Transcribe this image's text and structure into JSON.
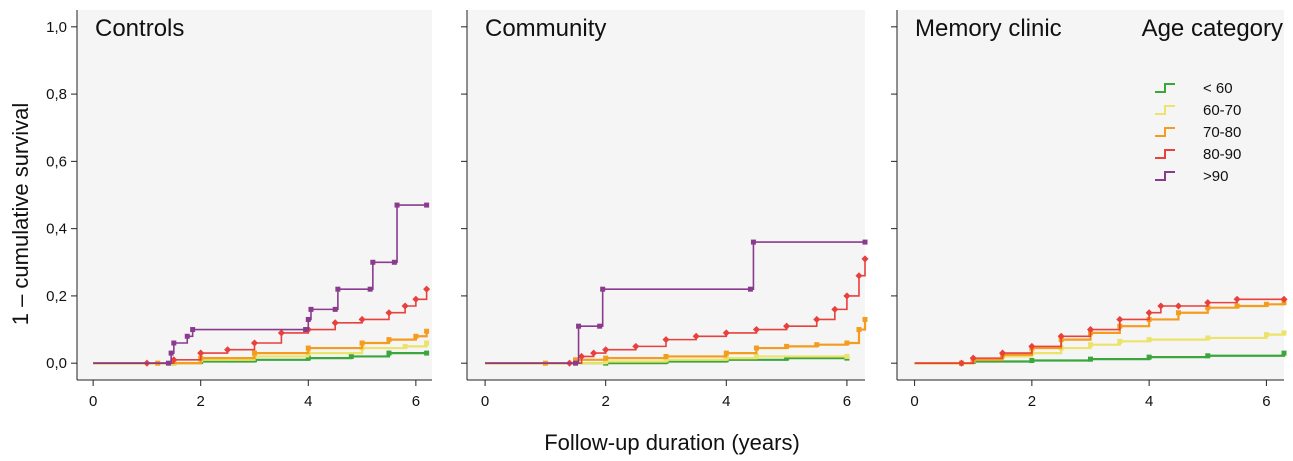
{
  "figure": {
    "ylabel": "1 – cumulative survival",
    "xlabel": "Follow-up duration (years)",
    "legend_title": "Age category"
  },
  "chart_data": {
    "type": "line",
    "step": true,
    "xlim": [
      -0.3,
      6.3
    ],
    "ylim": [
      -0.05,
      1.05
    ],
    "xticks": [
      "0",
      "2",
      "4",
      "6"
    ],
    "yticks": [
      "0,0",
      "0,2",
      "0,4",
      "0,6",
      "0,8",
      "1,0"
    ],
    "grid": false,
    "legend_position": "top-right",
    "legend": [
      {
        "label": "< 60",
        "color": "#3aa63c"
      },
      {
        "label": "60-70",
        "color": "#ece36a"
      },
      {
        "label": "70-80",
        "color": "#f39c1e"
      },
      {
        "label": "80-90",
        "color": "#e8403c"
      },
      {
        "label": ">90",
        "color": "#8a3b8e"
      }
    ],
    "panels": [
      {
        "title": "Controls",
        "show_ytick_labels": true,
        "series": [
          {
            "legend_index": 0,
            "points": [
              [
                0,
                0
              ],
              [
                1.5,
                0
              ],
              [
                2,
                0.005
              ],
              [
                3,
                0.01
              ],
              [
                4,
                0.015
              ],
              [
                4.8,
                0.02
              ],
              [
                5.5,
                0.03
              ],
              [
                6.2,
                0.03
              ]
            ]
          },
          {
            "legend_index": 1,
            "points": [
              [
                0,
                0
              ],
              [
                1.5,
                0
              ],
              [
                2,
                0.01
              ],
              [
                3,
                0.02
              ],
              [
                4,
                0.03
              ],
              [
                5,
                0.045
              ],
              [
                5.8,
                0.05
              ],
              [
                6.2,
                0.06
              ]
            ]
          },
          {
            "legend_index": 2,
            "points": [
              [
                0,
                0
              ],
              [
                1.2,
                0
              ],
              [
                2,
                0.015
              ],
              [
                3,
                0.03
              ],
              [
                4,
                0.045
              ],
              [
                5,
                0.06
              ],
              [
                5.5,
                0.07
              ],
              [
                6,
                0.08
              ],
              [
                6.2,
                0.095
              ]
            ]
          },
          {
            "legend_index": 3,
            "points": [
              [
                0,
                0
              ],
              [
                1,
                0
              ],
              [
                1.5,
                0.01
              ],
              [
                2,
                0.03
              ],
              [
                2.5,
                0.04
              ],
              [
                3,
                0.06
              ],
              [
                3.5,
                0.09
              ],
              [
                4,
                0.1
              ],
              [
                4.5,
                0.12
              ],
              [
                5,
                0.13
              ],
              [
                5.5,
                0.15
              ],
              [
                5.8,
                0.17
              ],
              [
                6,
                0.19
              ],
              [
                6.2,
                0.22
              ]
            ]
          },
          {
            "legend_index": 4,
            "points": [
              [
                0,
                0
              ],
              [
                1.4,
                0
              ],
              [
                1.45,
                0.03
              ],
              [
                1.5,
                0.06
              ],
              [
                1.75,
                0.08
              ],
              [
                1.85,
                0.1
              ],
              [
                3.95,
                0.1
              ],
              [
                4,
                0.13
              ],
              [
                4.05,
                0.16
              ],
              [
                4.5,
                0.16
              ],
              [
                4.55,
                0.22
              ],
              [
                5.15,
                0.22
              ],
              [
                5.2,
                0.3
              ],
              [
                5.6,
                0.3
              ],
              [
                5.65,
                0.47
              ],
              [
                6.2,
                0.47
              ]
            ]
          }
        ]
      },
      {
        "title": "Community",
        "show_ytick_labels": false,
        "series": [
          {
            "legend_index": 0,
            "points": [
              [
                0,
                0
              ],
              [
                2,
                0
              ],
              [
                3,
                0.005
              ],
              [
                4,
                0.01
              ],
              [
                5,
                0.015
              ],
              [
                6,
                0.015
              ]
            ]
          },
          {
            "legend_index": 1,
            "points": [
              [
                0,
                0
              ],
              [
                1.5,
                0
              ],
              [
                2,
                0.005
              ],
              [
                3,
                0.01
              ],
              [
                4,
                0.015
              ],
              [
                4.5,
                0.02
              ],
              [
                6,
                0.02
              ]
            ]
          },
          {
            "legend_index": 2,
            "points": [
              [
                0,
                0
              ],
              [
                1,
                0
              ],
              [
                1.5,
                0.01
              ],
              [
                2,
                0.015
              ],
              [
                3,
                0.02
              ],
              [
                4,
                0.03
              ],
              [
                4.5,
                0.045
              ],
              [
                5,
                0.05
              ],
              [
                5.5,
                0.055
              ],
              [
                6,
                0.06
              ],
              [
                6.2,
                0.1
              ],
              [
                6.3,
                0.13
              ]
            ]
          },
          {
            "legend_index": 3,
            "points": [
              [
                0,
                0
              ],
              [
                1.4,
                0
              ],
              [
                1.6,
                0.02
              ],
              [
                1.8,
                0.03
              ],
              [
                2,
                0.04
              ],
              [
                2.5,
                0.05
              ],
              [
                3,
                0.07
              ],
              [
                3.5,
                0.08
              ],
              [
                4,
                0.09
              ],
              [
                4.5,
                0.1
              ],
              [
                5,
                0.11
              ],
              [
                5.5,
                0.13
              ],
              [
                5.8,
                0.16
              ],
              [
                6,
                0.2
              ],
              [
                6.2,
                0.26
              ],
              [
                6.3,
                0.31
              ]
            ]
          },
          {
            "legend_index": 4,
            "points": [
              [
                0,
                0
              ],
              [
                1.5,
                0
              ],
              [
                1.55,
                0.11
              ],
              [
                1.9,
                0.11
              ],
              [
                1.95,
                0.22
              ],
              [
                4.4,
                0.22
              ],
              [
                4.45,
                0.36
              ],
              [
                6.3,
                0.36
              ]
            ]
          }
        ]
      },
      {
        "title": "Memory clinic",
        "show_ytick_labels": false,
        "series": [
          {
            "legend_index": 0,
            "points": [
              [
                0,
                0
              ],
              [
                0.8,
                0
              ],
              [
                1,
                0.005
              ],
              [
                2,
                0.008
              ],
              [
                3,
                0.012
              ],
              [
                4,
                0.018
              ],
              [
                5,
                0.022
              ],
              [
                6.3,
                0.03
              ]
            ]
          },
          {
            "legend_index": 1,
            "points": [
              [
                0,
                0
              ],
              [
                0.8,
                0
              ],
              [
                1,
                0.01
              ],
              [
                1.5,
                0.02
              ],
              [
                2,
                0.03
              ],
              [
                2.5,
                0.045
              ],
              [
                3,
                0.055
              ],
              [
                3.5,
                0.065
              ],
              [
                4,
                0.07
              ],
              [
                5,
                0.075
              ],
              [
                6,
                0.085
              ],
              [
                6.3,
                0.09
              ]
            ]
          },
          {
            "legend_index": 2,
            "points": [
              [
                0,
                0
              ],
              [
                0.8,
                0
              ],
              [
                1,
                0.01
              ],
              [
                1.5,
                0.025
              ],
              [
                2,
                0.045
              ],
              [
                2.5,
                0.07
              ],
              [
                3,
                0.09
              ],
              [
                3.5,
                0.11
              ],
              [
                4,
                0.13
              ],
              [
                4.5,
                0.15
              ],
              [
                5,
                0.165
              ],
              [
                5.5,
                0.17
              ],
              [
                6,
                0.175
              ],
              [
                6.3,
                0.18
              ]
            ]
          },
          {
            "legend_index": 3,
            "points": [
              [
                0,
                0
              ],
              [
                0.8,
                0
              ],
              [
                1,
                0.015
              ],
              [
                1.5,
                0.03
              ],
              [
                2,
                0.05
              ],
              [
                2.5,
                0.08
              ],
              [
                3,
                0.1
              ],
              [
                3.5,
                0.13
              ],
              [
                4,
                0.15
              ],
              [
                4.2,
                0.17
              ],
              [
                4.5,
                0.17
              ],
              [
                5,
                0.18
              ],
              [
                5.5,
                0.19
              ],
              [
                6.3,
                0.19
              ]
            ]
          }
        ]
      }
    ]
  }
}
